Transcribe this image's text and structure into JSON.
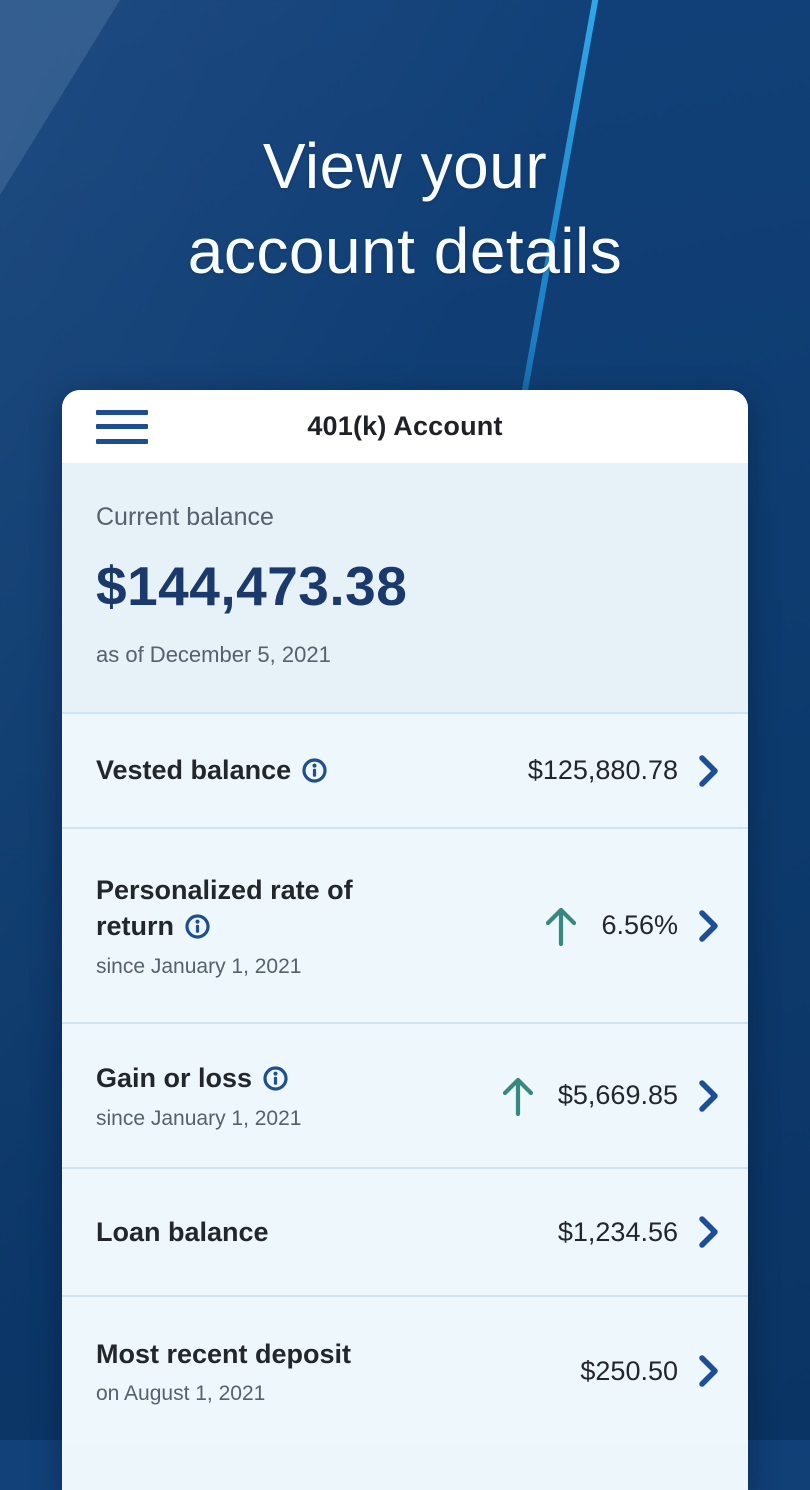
{
  "hero": {
    "title_line1": "View your",
    "title_line2": "account details"
  },
  "app": {
    "header": {
      "title": "401(k) Account"
    },
    "balance": {
      "label": "Current balance",
      "amount": "$144,473.38",
      "as_of": "as of December 5, 2021"
    },
    "rows": [
      {
        "label": "Vested balance",
        "info": true,
        "sub": "",
        "trend": "",
        "value": "$125,880.78",
        "chevron": true
      },
      {
        "label": "Personalized rate of return",
        "info": true,
        "sub": "since January 1, 2021",
        "trend": "up",
        "value": "6.56%",
        "chevron": true
      },
      {
        "label": "Gain or loss",
        "info": true,
        "sub": "since January 1, 2021",
        "trend": "up",
        "value": "$5,669.85",
        "chevron": true
      },
      {
        "label": "Loan balance",
        "info": false,
        "sub": "",
        "trend": "",
        "value": "$1,234.56",
        "chevron": true
      },
      {
        "label": "Most recent deposit",
        "info": false,
        "sub": "on August 1, 2021",
        "trend": "",
        "value": "$250.50",
        "chevron": true
      }
    ]
  },
  "colors": {
    "background_navy": "#0e3c70",
    "accent_line_blue": "#2196e0",
    "brand_navy": "#1b3a6b",
    "link_blue": "#1d4f96",
    "trend_up_teal": "#37897f",
    "card_light_blue": "#eef7fb",
    "divider_blue": "#cfe3f1",
    "text_dark": "#23272c",
    "text_gray": "#55616c"
  }
}
